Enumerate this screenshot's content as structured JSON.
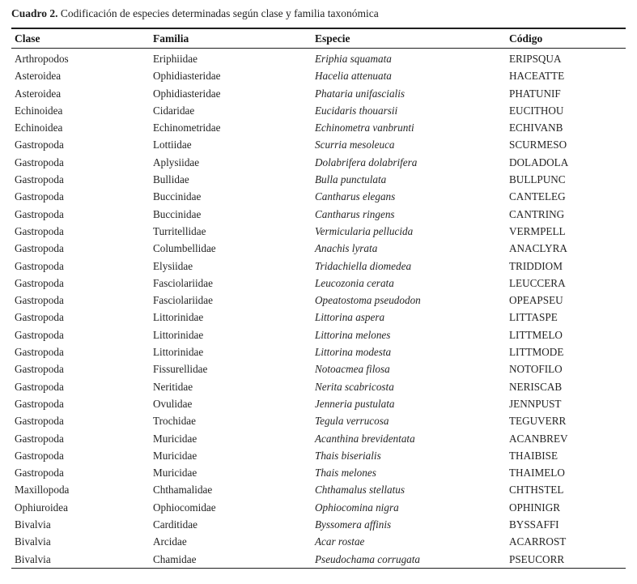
{
  "caption": {
    "label": "Cuadro 2.",
    "text": "Codificación de especies determinadas según clase y familia taxonómica"
  },
  "table": {
    "headers": [
      "Clase",
      "Familia",
      "Especie",
      "Código"
    ],
    "rows": [
      {
        "clase": "Arthropodos",
        "familia": "Eriphiidae",
        "especie": "Eriphia squamata",
        "codigo": "ERIPSQUA"
      },
      {
        "clase": "Asteroidea",
        "familia": "Ophidiasteridae",
        "especie": "Hacelia attenuata",
        "codigo": "HACEATTE"
      },
      {
        "clase": "Asteroidea",
        "familia": "Ophidiasteridae",
        "especie": "Phataria unifascialis",
        "codigo": "PHATUNIF"
      },
      {
        "clase": "Echinoidea",
        "familia": "Cidaridae",
        "especie": "Eucidaris thouarsii",
        "codigo": "EUCITHOU"
      },
      {
        "clase": "Echinoidea",
        "familia": "Echinometridae",
        "especie": "Echinometra vanbrunti",
        "codigo": "ECHIVANB"
      },
      {
        "clase": "Gastropoda",
        "familia": "Lottiidae",
        "especie": "Scurria mesoleuca",
        "codigo": "SCURMESO"
      },
      {
        "clase": "Gastropoda",
        "familia": "Aplysiidae",
        "especie": "Dolabrifera dolabrifera",
        "codigo": "DOLADOLA"
      },
      {
        "clase": "Gastropoda",
        "familia": "Bullidae",
        "especie": "Bulla punctulata",
        "codigo": "BULLPUNC"
      },
      {
        "clase": "Gastropoda",
        "familia": "Buccinidae",
        "especie": "Cantharus elegans",
        "codigo": "CANTELEG"
      },
      {
        "clase": "Gastropoda",
        "familia": "Buccinidae",
        "especie": "Cantharus ringens",
        "codigo": "CANTRING"
      },
      {
        "clase": "Gastropoda",
        "familia": "Turritellidae",
        "especie": "Vermicularia pellucida",
        "codigo": "VERMPELL"
      },
      {
        "clase": "Gastropoda",
        "familia": "Columbellidae",
        "especie": "Anachis lyrata",
        "codigo": "ANACLYRA"
      },
      {
        "clase": "Gastropoda",
        "familia": "Elysiidae",
        "especie": "Tridachiella diomedea",
        "codigo": "TRIDDIOM"
      },
      {
        "clase": "Gastropoda",
        "familia": "Fasciolariidae",
        "especie": "Leucozonia cerata",
        "codigo": "LEUCCERA"
      },
      {
        "clase": "Gastropoda",
        "familia": "Fasciolariidae",
        "especie": "Opeatostoma pseudodon",
        "codigo": "OPEAPSEU"
      },
      {
        "clase": "Gastropoda",
        "familia": "Littorinidae",
        "especie": "Littorina aspera",
        "codigo": "LITTASPE"
      },
      {
        "clase": "Gastropoda",
        "familia": "Littorinidae",
        "especie": "Littorina melones",
        "codigo": "LITTMELO"
      },
      {
        "clase": "Gastropoda",
        "familia": "Littorinidae",
        "especie": "Littorina modesta",
        "codigo": "LITTMODE"
      },
      {
        "clase": "Gastropoda",
        "familia": "Fissurellidae",
        "especie": "Notoacmea filosa",
        "codigo": "NOTOFILO"
      },
      {
        "clase": "Gastropoda",
        "familia": "Neritidae",
        "especie": "Nerita scabricosta",
        "codigo": "NERISCAB"
      },
      {
        "clase": "Gastropoda",
        "familia": "Ovulidae",
        "especie": "Jenneria pustulata",
        "codigo": "JENNPUST"
      },
      {
        "clase": "Gastropoda",
        "familia": "Trochidae",
        "especie": "Tegula verrucosa",
        "codigo": "TEGUVERR"
      },
      {
        "clase": "Gastropoda",
        "familia": "Muricidae",
        "especie": "Acanthina brevidentata",
        "codigo": "ACANBREV"
      },
      {
        "clase": "Gastropoda",
        "familia": "Muricidae",
        "especie": "Thais biserialis",
        "codigo": "THAIBISE"
      },
      {
        "clase": "Gastropoda",
        "familia": "Muricidae",
        "especie": "Thais melones",
        "codigo": "THAIMELO"
      },
      {
        "clase": "Maxillopoda",
        "familia": "Chthamalidae",
        "especie": "Chthamalus stellatus",
        "codigo": "CHTHSTEL"
      },
      {
        "clase": "Ophiuroidea",
        "familia": "Ophiocomidae",
        "especie": "Ophiocomina nigra",
        "codigo": "OPHINIGR"
      },
      {
        "clase": "Bivalvia",
        "familia": "Carditidae",
        "especie": "Byssomera affinis",
        "codigo": "BYSSAFFI"
      },
      {
        "clase": "Bivalvia",
        "familia": "Arcidae",
        "especie": "Acar rostae",
        "codigo": "ACARROST"
      },
      {
        "clase": "Bivalvia",
        "familia": "Chamidae",
        "especie": "Pseudochama corrugata",
        "codigo": "PSEUCORR"
      }
    ]
  },
  "colors": {
    "text": "#1f1f1f",
    "border": "#1e1e1e",
    "background": "#ffffff"
  }
}
